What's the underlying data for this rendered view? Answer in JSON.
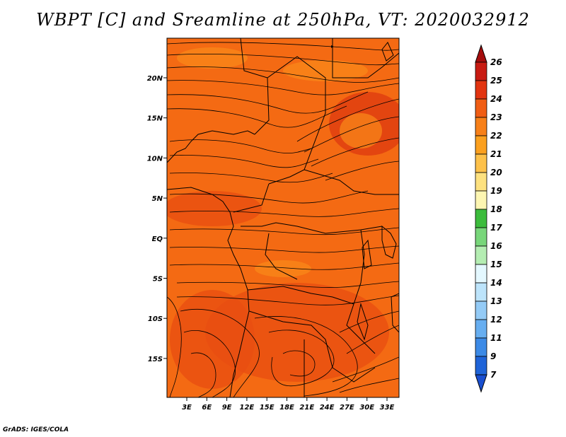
{
  "title": "WBPT [C] and Sreamline at 250hPa, VT: 2020032912",
  "credit": "GrADS: IGES/COLA",
  "map": {
    "lat_labels": [
      "20N",
      "15N",
      "10N",
      "5N",
      "EQ",
      "5S",
      "10S",
      "15S"
    ],
    "lon_labels": [
      "3E",
      "6E",
      "9E",
      "12E",
      "15E",
      "18E",
      "21E",
      "24E",
      "27E",
      "30E",
      "33E"
    ],
    "field_colors": {
      "dominant": "#f46a13",
      "warm": "#e84d12",
      "hot": "#de3c10",
      "cool": "#fa8a1a"
    }
  },
  "colorbar": {
    "labels": [
      "26",
      "25",
      "24",
      "23",
      "22",
      "21",
      "20",
      "19",
      "18",
      "17",
      "16",
      "15",
      "14",
      "13",
      "12",
      "11",
      "9",
      "7"
    ],
    "colors": [
      "#a50d0d",
      "#c81b12",
      "#e23410",
      "#f05d14",
      "#f78019",
      "#fba01f",
      "#fdc14a",
      "#fde17f",
      "#fdf6b2",
      "#3cbc3c",
      "#78d67a",
      "#b4edb2",
      "#e4f8ff",
      "#bde4fb",
      "#94cbf6",
      "#67aef0",
      "#3c8ae6",
      "#1f64d8",
      "#1a4fd0"
    ]
  }
}
